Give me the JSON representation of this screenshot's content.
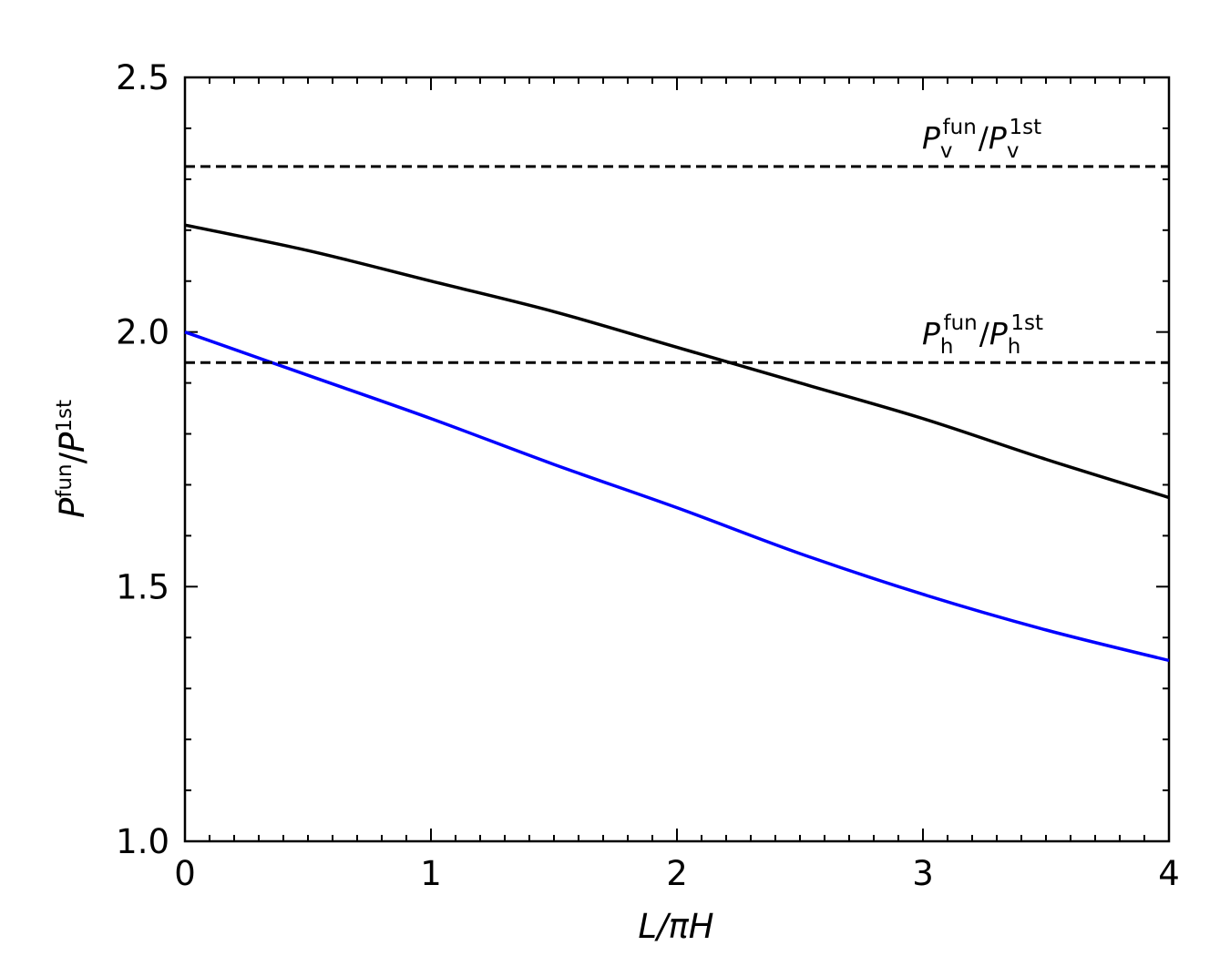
{
  "chart_data": {
    "type": "line",
    "xlabel": "L/πH",
    "ylabel": "P^fun/P^1st",
    "xlim": [
      0,
      4
    ],
    "ylim": [
      1.0,
      2.5
    ],
    "x_ticks": [
      "0",
      "1",
      "2",
      "3",
      "4"
    ],
    "y_ticks": [
      "1.0",
      "1.5",
      "2.0",
      "2.5"
    ],
    "grid": false,
    "ticks_direction": "in",
    "series": [
      {
        "color": "#000000",
        "style": "solid",
        "x": [
          0,
          0.5,
          1,
          1.5,
          2,
          2.5,
          3,
          3.5,
          4
        ],
        "y": [
          2.21,
          2.16,
          2.1,
          2.04,
          1.97,
          1.9,
          1.83,
          1.75,
          1.675
        ]
      },
      {
        "color": "#0000ff",
        "style": "solid",
        "x": [
          0,
          0.5,
          1,
          1.5,
          2,
          2.5,
          3,
          3.5,
          4
        ],
        "y": [
          2.0,
          1.915,
          1.83,
          1.74,
          1.655,
          1.565,
          1.485,
          1.415,
          1.355
        ]
      }
    ],
    "reference_lines": [
      {
        "y": 2.325,
        "color": "#000000",
        "style": "dashed",
        "label": {
          "P": "P",
          "sub": "v",
          "fun": "fun",
          "slash": "/",
          "sup": "1st"
        }
      },
      {
        "y": 1.94,
        "color": "#000000",
        "style": "dashed",
        "label": {
          "P": "P",
          "sub": "h",
          "fun": "fun",
          "slash": "/",
          "sup": "1st"
        }
      }
    ]
  }
}
